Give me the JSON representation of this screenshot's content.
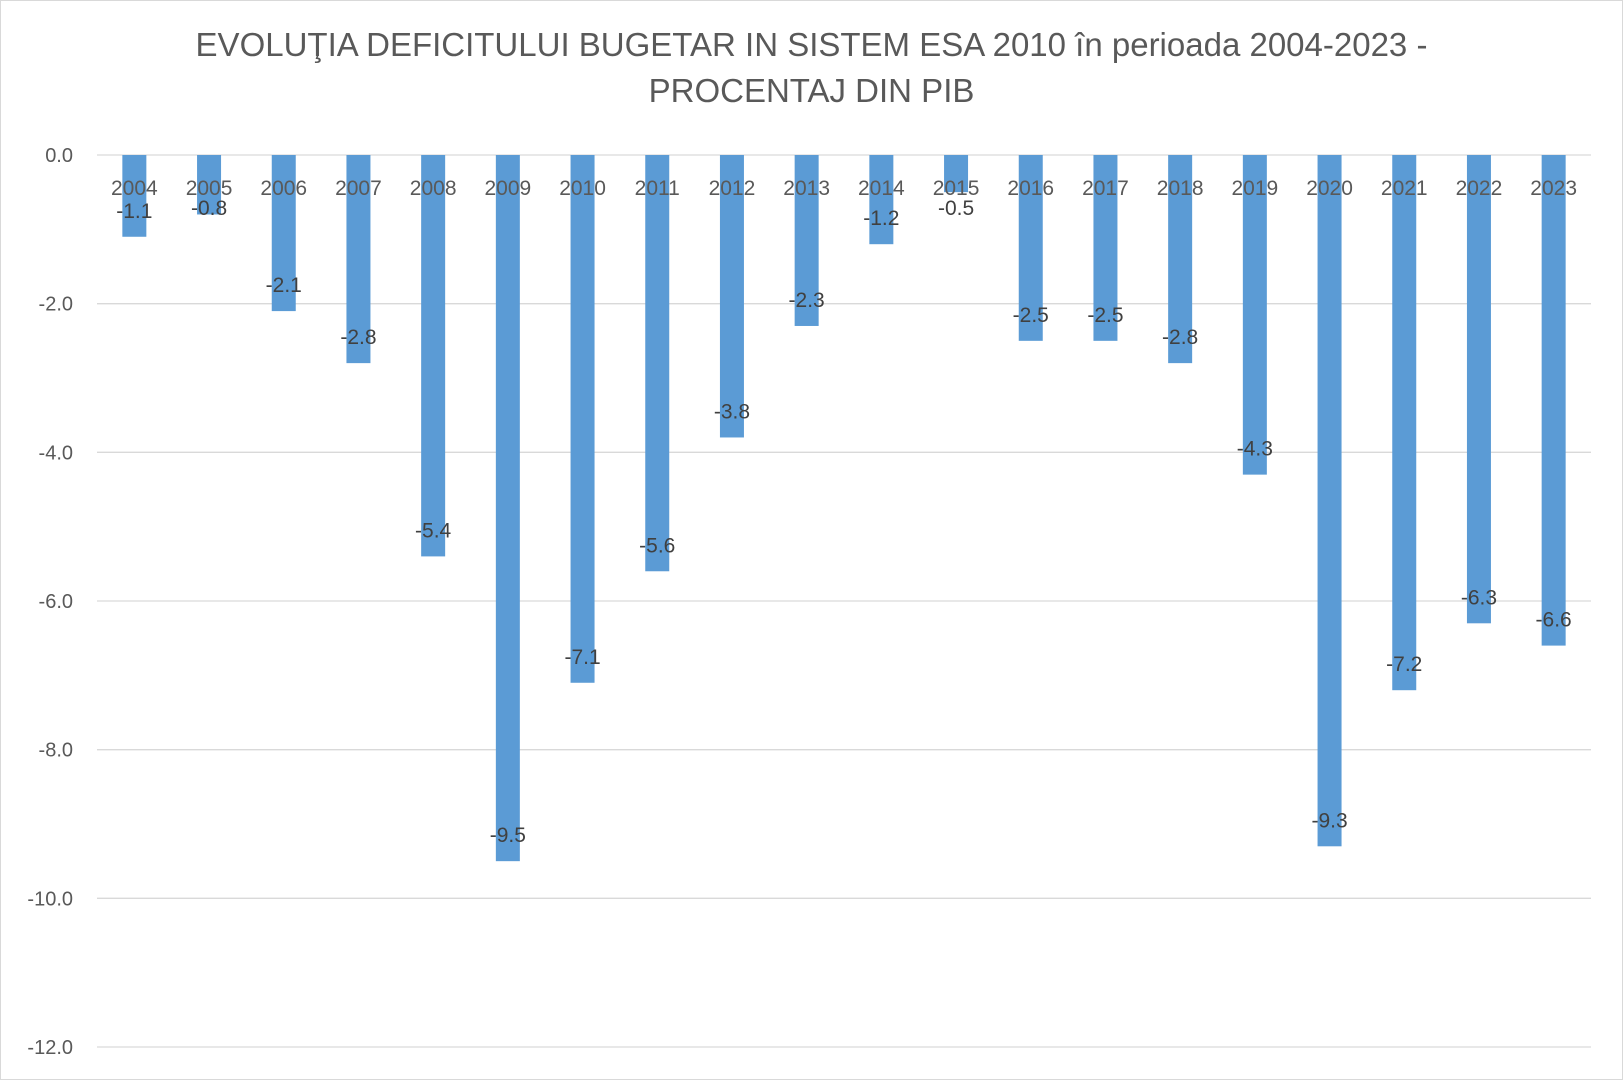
{
  "chart_data": {
    "type": "bar",
    "title_line1": "EVOLUŢIA DEFICITULUI BUGETAR IN SISTEM ESA 2010 în perioada 2004-2023 -",
    "title_line2": "PROCENTAJ DIN PIB",
    "categories": [
      "2004",
      "2005",
      "2006",
      "2007",
      "2008",
      "2009",
      "2010",
      "2011",
      "2012",
      "2013",
      "2014",
      "2015",
      "2016",
      "2017",
      "2018",
      "2019",
      "2020",
      "2021",
      "2022",
      "2023"
    ],
    "values": [
      -1.1,
      -0.8,
      -2.1,
      -2.8,
      -5.4,
      -9.5,
      -7.1,
      -5.6,
      -3.8,
      -2.3,
      -1.2,
      -0.5,
      -2.5,
      -2.5,
      -2.8,
      -4.3,
      -9.3,
      -7.2,
      -6.3,
      -6.6
    ],
    "data_labels": [
      "-1.1",
      "-0.8",
      "-2.1",
      "-2.8",
      "-5.4",
      "-9.5",
      "-7.1",
      "-5.6",
      "-3.8",
      "-2.3",
      "-1.2",
      "-0.5",
      "-2.5",
      "-2.5",
      "-2.8",
      "-4.3",
      "-9.3",
      "-7.2",
      "-6.3",
      "-6.6"
    ],
    "y_ticks": [
      "0.0",
      "-2.0",
      "-4.0",
      "-6.0",
      "-8.0",
      "-10.0",
      "-12.0"
    ],
    "ylim": [
      -12,
      0
    ],
    "grid": true,
    "legend": "none",
    "bar_color": "#5b9bd5",
    "grid_color": "#d9d9d9",
    "text_color": "#595959"
  }
}
